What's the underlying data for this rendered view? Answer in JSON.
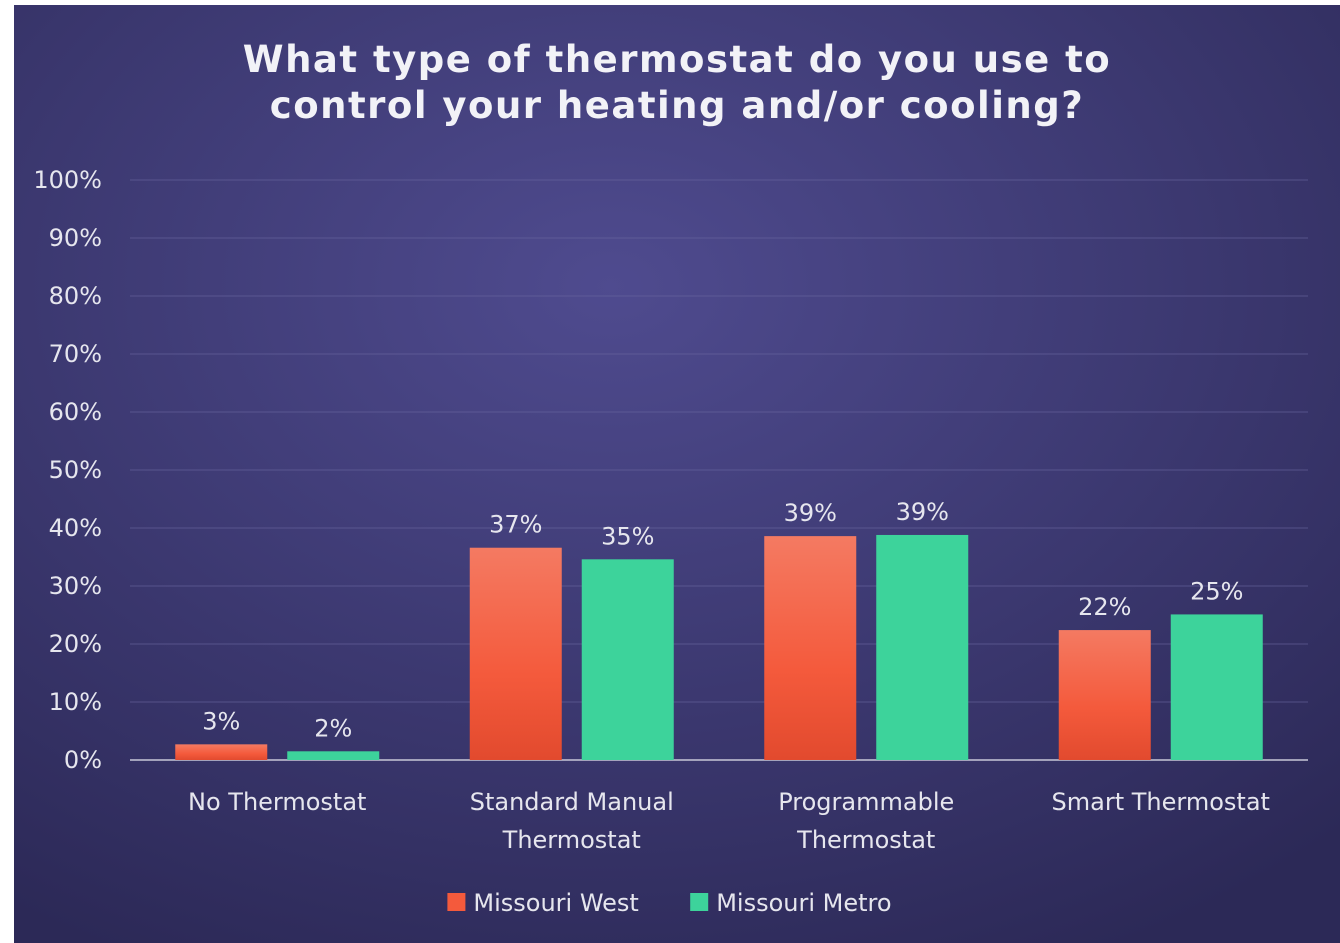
{
  "chart_data": {
    "type": "bar",
    "title": "What type of thermostat do you use to control your heating and/or cooling?",
    "categories": [
      "No Thermostat",
      "Standard Manual Thermostat",
      "Programmable Thermostat",
      "Smart Thermostat"
    ],
    "series": [
      {
        "name": "Missouri West",
        "color": "#f45a3c",
        "values": [
          2.7,
          36.6,
          38.6,
          22.4
        ],
        "value_labels": [
          "3%",
          "37%",
          "39%",
          "22%"
        ]
      },
      {
        "name": "Missouri Metro",
        "color": "#3dd39b",
        "values": [
          1.5,
          34.6,
          38.8,
          25.1
        ],
        "value_labels": [
          "2%",
          "35%",
          "39%",
          "25%"
        ]
      }
    ],
    "ylim": [
      0,
      100
    ],
    "yticks": [
      {
        "value": 0,
        "label": "0%"
      },
      {
        "value": 10,
        "label": "10%"
      },
      {
        "value": 20,
        "label": "20%"
      },
      {
        "value": 30,
        "label": "30%"
      },
      {
        "value": 40,
        "label": "40%"
      },
      {
        "value": 50,
        "label": "50%"
      },
      {
        "value": 60,
        "label": "60%"
      },
      {
        "value": 70,
        "label": "70%"
      },
      {
        "value": 80,
        "label": "80%"
      },
      {
        "value": 90,
        "label": "90%"
      },
      {
        "value": 100,
        "label": "100%"
      }
    ],
    "grid": true,
    "legend": "bottom"
  }
}
